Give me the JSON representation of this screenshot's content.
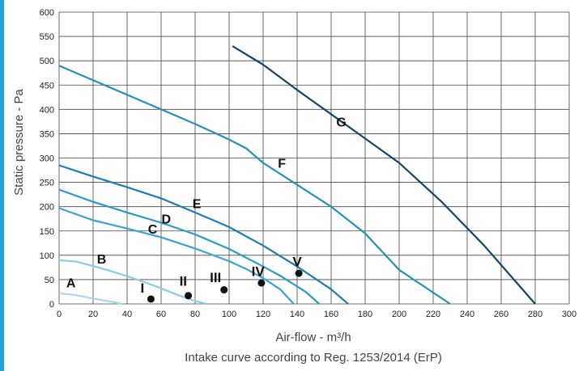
{
  "page": {
    "accent_color": "#1ca0d8"
  },
  "chart_data": {
    "type": "line",
    "title": "",
    "xlabel": "Air-flow - m³/h",
    "ylabel": "Static pressure - Pa",
    "caption": "Intake curve according to Reg. 1253/2014 (ErP)",
    "xlim": [
      0,
      300
    ],
    "ylim": [
      0,
      600
    ],
    "x_ticks": [
      0,
      20,
      40,
      60,
      80,
      100,
      120,
      140,
      160,
      180,
      200,
      220,
      240,
      260,
      280,
      300
    ],
    "y_ticks": [
      0,
      50,
      100,
      150,
      200,
      250,
      300,
      350,
      400,
      450,
      500,
      550,
      600
    ],
    "grid": true,
    "series": [
      {
        "name": "A",
        "color": "#a9d5ec",
        "label_at": [
          7,
          34
        ],
        "points": [
          [
            0,
            22
          ],
          [
            10,
            18
          ],
          [
            20,
            11
          ],
          [
            30,
            5
          ],
          [
            37,
            0
          ]
        ]
      },
      {
        "name": "B",
        "color": "#8ccbe8",
        "label_at": [
          25,
          83
        ],
        "points": [
          [
            0,
            90
          ],
          [
            10,
            87
          ],
          [
            20,
            78
          ],
          [
            30,
            68
          ],
          [
            40,
            57
          ],
          [
            50,
            45
          ],
          [
            60,
            32
          ],
          [
            70,
            18
          ],
          [
            80,
            6
          ],
          [
            87,
            0
          ]
        ]
      },
      {
        "name": "C",
        "color": "#3aa3d0",
        "label_at": [
          55,
          145
        ],
        "points": [
          [
            0,
            197
          ],
          [
            20,
            172
          ],
          [
            40,
            155
          ],
          [
            60,
            137
          ],
          [
            80,
            114
          ],
          [
            100,
            88
          ],
          [
            110,
            72
          ],
          [
            120,
            53
          ],
          [
            130,
            30
          ],
          [
            138,
            0
          ]
        ]
      },
      {
        "name": "D",
        "color": "#2a9bc9",
        "label_at": [
          63,
          165
        ],
        "points": [
          [
            0,
            235
          ],
          [
            20,
            210
          ],
          [
            40,
            188
          ],
          [
            60,
            167
          ],
          [
            80,
            143
          ],
          [
            100,
            113
          ],
          [
            120,
            77
          ],
          [
            130,
            58
          ],
          [
            145,
            25
          ],
          [
            153,
            0
          ]
        ]
      },
      {
        "name": "E",
        "color": "#1a7eb5",
        "label_at": [
          81,
          197
        ],
        "points": [
          [
            0,
            285
          ],
          [
            20,
            262
          ],
          [
            40,
            240
          ],
          [
            60,
            217
          ],
          [
            80,
            188
          ],
          [
            100,
            158
          ],
          [
            120,
            120
          ],
          [
            140,
            77
          ],
          [
            160,
            30
          ],
          [
            170,
            0
          ]
        ]
      },
      {
        "name": "F",
        "color": "#2491b8",
        "label_at": [
          131,
          280
        ],
        "points": [
          [
            0,
            490
          ],
          [
            20,
            460
          ],
          [
            40,
            430
          ],
          [
            60,
            400
          ],
          [
            80,
            370
          ],
          [
            100,
            338
          ],
          [
            110,
            320
          ],
          [
            120,
            290
          ],
          [
            140,
            245
          ],
          [
            160,
            200
          ],
          [
            180,
            145
          ],
          [
            200,
            70
          ],
          [
            230,
            0
          ]
        ]
      },
      {
        "name": "G",
        "color": "#13456a",
        "label_at": [
          166,
          365
        ],
        "points": [
          [
            102,
            530
          ],
          [
            120,
            492
          ],
          [
            140,
            440
          ],
          [
            160,
            390
          ],
          [
            180,
            340
          ],
          [
            200,
            290
          ],
          [
            225,
            210
          ],
          [
            250,
            120
          ],
          [
            270,
            40
          ],
          [
            280,
            0
          ]
        ]
      }
    ],
    "points": [
      {
        "name": "I",
        "x": 54,
        "y": 10,
        "label_at": [
          49,
          23
        ]
      },
      {
        "name": "II",
        "x": 76,
        "y": 17,
        "label_at": [
          73,
          37
        ]
      },
      {
        "name": "III",
        "x": 97,
        "y": 29,
        "label_at": [
          92,
          45
        ]
      },
      {
        "name": "IV",
        "x": 119,
        "y": 43,
        "label_at": [
          117,
          57
        ]
      },
      {
        "name": "V",
        "x": 141,
        "y": 63,
        "label_at": [
          140,
          77
        ]
      }
    ]
  }
}
